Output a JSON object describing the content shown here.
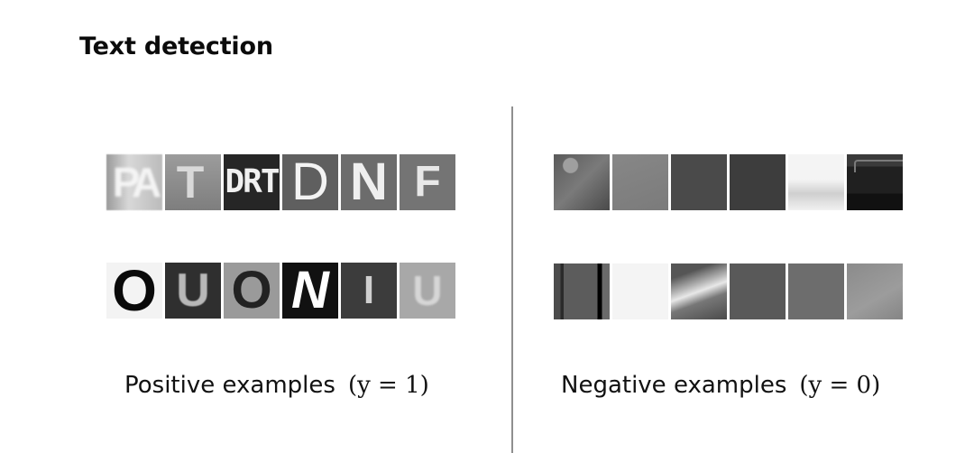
{
  "slide": {
    "title": "Text detection"
  },
  "positive": {
    "caption": "Positive examples",
    "label_math": "(y = 1)",
    "row1": [
      "PA",
      "T",
      "DRT",
      "D",
      "N",
      "F"
    ],
    "row2": [
      "O",
      "U",
      "O",
      "N",
      "I",
      "U"
    ]
  },
  "negative": {
    "caption": "Negative examples",
    "label_math": "(y = 0)"
  }
}
